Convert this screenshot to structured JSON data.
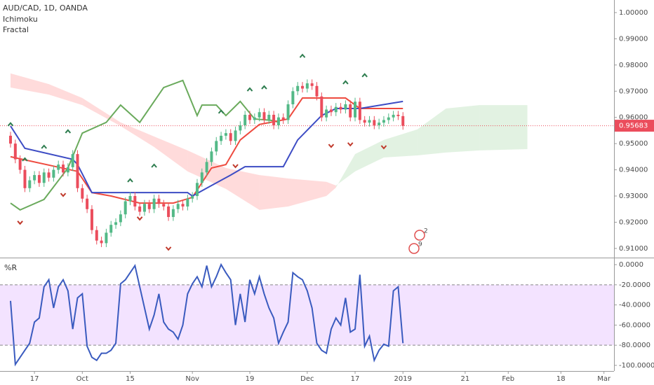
{
  "chart_data": [
    {
      "type": "candlestick",
      "title": "AUD/CAD, 1D, OANDA",
      "indicators": [
        "Ichimoku",
        "Fractal"
      ],
      "xlim": [
        -2.2,
        126.1
      ],
      "xticks": [
        {
          "value": 5,
          "label": "17"
        },
        {
          "value": 15,
          "label": "Oct"
        },
        {
          "value": 25,
          "label": "15"
        },
        {
          "value": 38,
          "label": "Nov"
        },
        {
          "value": 50,
          "label": "19"
        },
        {
          "value": 62,
          "label": "Dec"
        },
        {
          "value": 72,
          "label": "17"
        },
        {
          "value": 82,
          "label": "2019"
        },
        {
          "value": 95,
          "label": "21"
        },
        {
          "value": 104,
          "label": "Feb"
        },
        {
          "value": 115,
          "label": "18"
        },
        {
          "value": 124,
          "label": "Mar"
        }
      ],
      "ylim": [
        0.9065,
        1.0048
      ],
      "yticks": [
        {
          "value": 0.91,
          "label": "0.91000"
        },
        {
          "value": 0.92,
          "label": "0.92000"
        },
        {
          "value": 0.93,
          "label": "0.93000"
        },
        {
          "value": 0.94,
          "label": "0.94000"
        },
        {
          "value": 0.95,
          "label": "0.95000"
        },
        {
          "value": 0.96,
          "label": "0.96000"
        },
        {
          "value": 0.97,
          "label": "0.97000"
        },
        {
          "value": 0.98,
          "label": "0.98000"
        },
        {
          "value": 0.99,
          "label": "0.99000"
        },
        {
          "value": 1.0,
          "label": "1.00000"
        }
      ],
      "up_color": "#53b987",
      "down_color": "#eb4d5c",
      "open": [
        0.953,
        0.95,
        0.944,
        0.94,
        0.933,
        0.936,
        0.938,
        0.935,
        0.939,
        0.937,
        0.94,
        0.942,
        0.939,
        0.941,
        0.946,
        0.933,
        0.929,
        0.925,
        0.917,
        0.913,
        0.912,
        0.916,
        0.919,
        0.92,
        0.923,
        0.928,
        0.93,
        0.926,
        0.924,
        0.927,
        0.925,
        0.929,
        0.927,
        0.926,
        0.922,
        0.925,
        0.927,
        0.926,
        0.929,
        0.93,
        0.935,
        0.939,
        0.943,
        0.947,
        0.951,
        0.953,
        0.954,
        0.951,
        0.955,
        0.957,
        0.961,
        0.959,
        0.96,
        0.962,
        0.959,
        0.961,
        0.957,
        0.96,
        0.959,
        0.965,
        0.97,
        0.972,
        0.971,
        0.973,
        0.972,
        0.968,
        0.96,
        0.963,
        0.962,
        0.964,
        0.963,
        0.965,
        0.96,
        0.966,
        0.959,
        0.958,
        0.959,
        0.957,
        0.958,
        0.959,
        0.96,
        0.961,
        0.9605
      ],
      "close": [
        0.95,
        0.944,
        0.94,
        0.933,
        0.936,
        0.938,
        0.935,
        0.939,
        0.937,
        0.94,
        0.942,
        0.939,
        0.941,
        0.946,
        0.933,
        0.929,
        0.925,
        0.917,
        0.913,
        0.912,
        0.916,
        0.919,
        0.92,
        0.923,
        0.928,
        0.93,
        0.926,
        0.924,
        0.927,
        0.925,
        0.929,
        0.927,
        0.926,
        0.922,
        0.925,
        0.927,
        0.926,
        0.929,
        0.93,
        0.935,
        0.939,
        0.943,
        0.947,
        0.951,
        0.953,
        0.954,
        0.951,
        0.955,
        0.957,
        0.961,
        0.959,
        0.96,
        0.962,
        0.959,
        0.961,
        0.957,
        0.96,
        0.959,
        0.965,
        0.97,
        0.972,
        0.971,
        0.973,
        0.972,
        0.968,
        0.96,
        0.963,
        0.962,
        0.964,
        0.963,
        0.965,
        0.96,
        0.966,
        0.959,
        0.958,
        0.959,
        0.957,
        0.958,
        0.959,
        0.96,
        0.961,
        0.9605,
        0.9568
      ],
      "high": [
        0.9545,
        0.9515,
        0.9455,
        0.9415,
        0.9375,
        0.9395,
        0.9395,
        0.9405,
        0.9405,
        0.9415,
        0.9435,
        0.9435,
        0.9425,
        0.9475,
        0.9475,
        0.9345,
        0.9305,
        0.9265,
        0.9185,
        0.9145,
        0.9175,
        0.9205,
        0.9215,
        0.9245,
        0.9295,
        0.9315,
        0.9315,
        0.9275,
        0.9285,
        0.9285,
        0.9305,
        0.9305,
        0.9285,
        0.9275,
        0.9265,
        0.9285,
        0.9285,
        0.9305,
        0.9315,
        0.9365,
        0.9405,
        0.9445,
        0.9485,
        0.9525,
        0.9545,
        0.9555,
        0.9555,
        0.9565,
        0.9585,
        0.9625,
        0.9625,
        0.9615,
        0.9635,
        0.9635,
        0.9625,
        0.9625,
        0.9615,
        0.9615,
        0.9665,
        0.9715,
        0.9735,
        0.9735,
        0.9745,
        0.9745,
        0.9735,
        0.9695,
        0.9645,
        0.9645,
        0.9655,
        0.9655,
        0.9665,
        0.9665,
        0.9675,
        0.9675,
        0.9605,
        0.9605,
        0.9605,
        0.9595,
        0.9605,
        0.9615,
        0.9625,
        0.9625,
        0.962
      ],
      "low": [
        0.9485,
        0.9425,
        0.9385,
        0.9315,
        0.9315,
        0.9345,
        0.9335,
        0.9335,
        0.9355,
        0.9355,
        0.9385,
        0.9375,
        0.9375,
        0.9395,
        0.9315,
        0.9275,
        0.9235,
        0.9155,
        0.9115,
        0.9105,
        0.9105,
        0.9145,
        0.9175,
        0.9185,
        0.9215,
        0.9265,
        0.9245,
        0.9225,
        0.9225,
        0.9235,
        0.9235,
        0.9255,
        0.9245,
        0.9205,
        0.9205,
        0.9235,
        0.9245,
        0.9245,
        0.9275,
        0.9285,
        0.9335,
        0.9375,
        0.9415,
        0.9455,
        0.9495,
        0.9515,
        0.9495,
        0.9495,
        0.9535,
        0.9555,
        0.9575,
        0.9575,
        0.9585,
        0.9575,
        0.9575,
        0.9555,
        0.9555,
        0.9575,
        0.9575,
        0.9635,
        0.9685,
        0.9695,
        0.9695,
        0.9705,
        0.9665,
        0.9585,
        0.9585,
        0.9605,
        0.9605,
        0.9615,
        0.9615,
        0.9585,
        0.9585,
        0.9575,
        0.9565,
        0.9565,
        0.9555,
        0.9555,
        0.9565,
        0.9575,
        0.9585,
        0.959,
        0.9553
      ],
      "cloud": {
        "up_color": "rgba(150,210,150,0.28)",
        "down_color": "rgba(255,160,160,0.38)",
        "x": [
          0,
          8,
          15,
          23,
          30,
          37,
          45,
          52,
          58,
          66,
          68,
          72,
          78,
          85,
          91,
          98,
          108
        ],
        "span_a": [
          0.9714,
          0.9687,
          0.9647,
          0.9567,
          0.9487,
          0.9394,
          0.9327,
          0.9247,
          0.926,
          0.93,
          0.9332,
          0.946,
          0.9514,
          0.9554,
          0.9634,
          0.9647,
          0.9647
        ],
        "span_b": [
          0.9768,
          0.9727,
          0.9674,
          0.9581,
          0.9527,
          0.9474,
          0.9407,
          0.938,
          0.9367,
          0.9354,
          0.934,
          0.9394,
          0.9447,
          0.9455,
          0.9466,
          0.9474,
          0.9479
        ]
      },
      "lines": [
        {
          "color": "#6aaa5c",
          "x": [
            0,
            2,
            7,
            12,
            15,
            20,
            23,
            27,
            32,
            36,
            39,
            40,
            43,
            45,
            48,
            51,
            55,
            56
          ],
          "values": [
            0.9273,
            0.9247,
            0.9287,
            0.9407,
            0.954,
            0.9581,
            0.9647,
            0.9581,
            0.9714,
            0.9741,
            0.9607,
            0.9647,
            0.9647,
            0.9607,
            0.9661,
            0.9594,
            0.9588,
            0.9581
          ]
        },
        {
          "color": "#ee4b3f",
          "x": [
            0,
            14,
            17,
            21,
            27,
            34,
            38,
            42,
            45,
            48,
            52,
            58,
            61,
            70,
            73,
            82
          ],
          "values": [
            0.945,
            0.9394,
            0.9313,
            0.93,
            0.9273,
            0.9273,
            0.9295,
            0.9407,
            0.942,
            0.9514,
            0.9573,
            0.9594,
            0.9674,
            0.9674,
            0.9634,
            0.9634
          ]
        },
        {
          "color": "#3d4cc4",
          "x": [
            0,
            3,
            13,
            14,
            17,
            37,
            38,
            42,
            46,
            49,
            57,
            60,
            65,
            68,
            73,
            82
          ],
          "values": [
            0.9567,
            0.9482,
            0.944,
            0.942,
            0.9313,
            0.9313,
            0.93,
            0.934,
            0.938,
            0.9412,
            0.9412,
            0.9514,
            0.9607,
            0.9634,
            0.9634,
            0.9661
          ]
        }
      ],
      "fractals_up": {
        "color": "#2e7d4f",
        "x": [
          0,
          3,
          7,
          12,
          25,
          30,
          44,
          50,
          53,
          61,
          70,
          74
        ],
        "values": [
          0.9573,
          0.9439,
          0.9487,
          0.9546,
          0.9359,
          0.9415,
          0.9621,
          0.9706,
          0.9714,
          0.9834,
          0.9733,
          0.976
        ]
      },
      "fractals_down": {
        "color": "#c0392b",
        "x": [
          2,
          11,
          27,
          33,
          47,
          67,
          71,
          78
        ],
        "values": [
          0.9199,
          0.9305,
          0.9215,
          0.91,
          0.9415,
          0.9492,
          0.9498,
          0.9487
        ]
      },
      "last_price": {
        "value": 0.95683,
        "label": "0.95683",
        "color": "#eb4d5c"
      },
      "events": [
        "2",
        "9"
      ]
    },
    {
      "type": "line",
      "title": "%R",
      "color": "#3a5bbf",
      "band_color": "#f3e3ff",
      "ylim": [
        -105.6,
        5.6
      ],
      "band": [
        -80,
        -20
      ],
      "yticks": [
        {
          "value": 0,
          "label": "0.0000"
        },
        {
          "value": -20,
          "label": "-20.0000"
        },
        {
          "value": -40,
          "label": "-40.0000"
        },
        {
          "value": -60,
          "label": "-60.0000"
        },
        {
          "value": -80,
          "label": "-80.0000"
        },
        {
          "value": -100,
          "label": "-100.0000"
        }
      ],
      "values": [
        -36,
        -99,
        -92,
        -85,
        -78,
        -57,
        -53,
        -22,
        -15,
        -43,
        -22,
        -15,
        -26,
        -64,
        -33,
        -29,
        -81,
        -92,
        -95,
        -88,
        -88,
        -85,
        -78,
        -19,
        -15,
        -8,
        -1,
        -22,
        -43,
        -64,
        -50,
        -29,
        -57,
        -64,
        -67,
        -74,
        -60,
        -29,
        -19,
        -12,
        -22,
        -1,
        -22,
        -12,
        0,
        -8,
        -15,
        -60,
        -29,
        -57,
        -15,
        -29,
        -12,
        -29,
        -43,
        -53,
        -78,
        -67,
        -57,
        -8,
        -12,
        -15,
        -26,
        -43,
        -78,
        -85,
        -88,
        -64,
        -53,
        -60,
        -33,
        -67,
        -64,
        -10,
        -81,
        -71,
        -95,
        -85,
        -79,
        -81,
        -26,
        -22,
        -78
      ]
    }
  ]
}
